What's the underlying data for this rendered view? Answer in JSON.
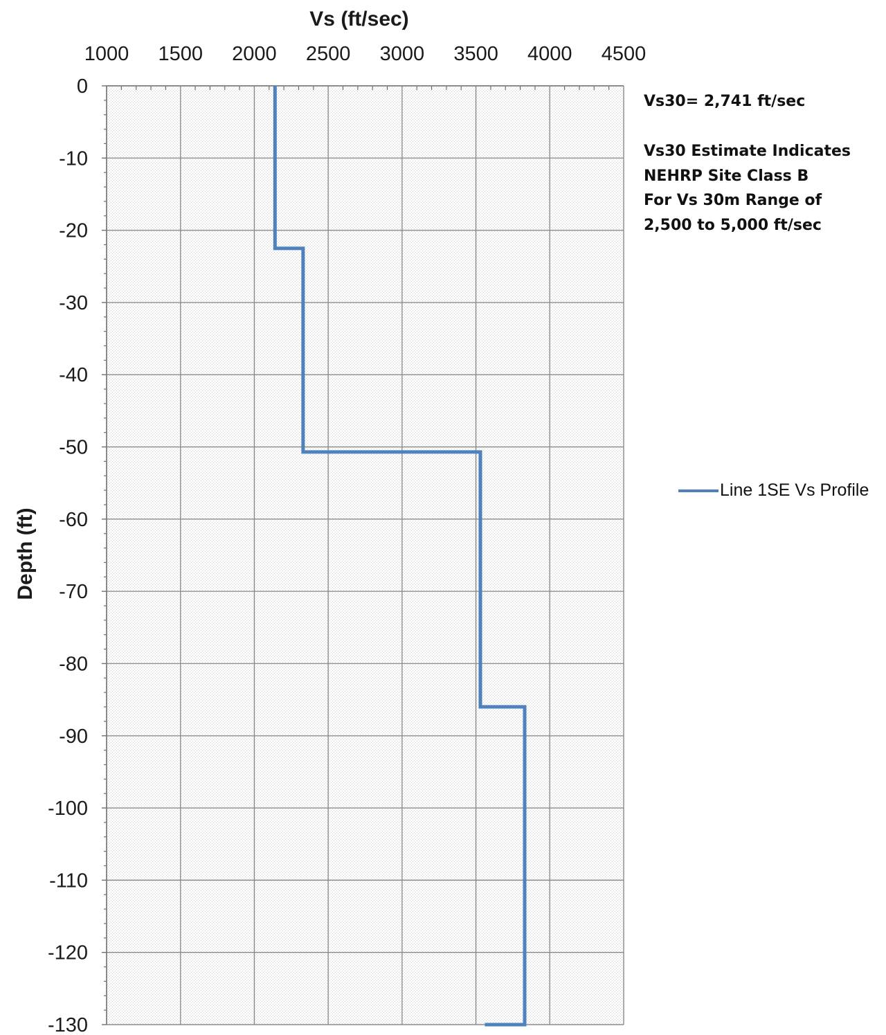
{
  "chart_data": {
    "type": "line",
    "title": "",
    "xlabel": "Vs (ft/sec)",
    "ylabel": "Depth (ft)",
    "x_axis_position": "top",
    "xlim": [
      1000,
      4500
    ],
    "ylim": [
      -130,
      0
    ],
    "x_major_step": 500,
    "y_major_step": 10,
    "grid": true,
    "xticks": [
      "1000",
      "1500",
      "2000",
      "2500",
      "3000",
      "3500",
      "4000",
      "4500"
    ],
    "yticks": [
      "0",
      "-10",
      "-20",
      "-30",
      "-40",
      "-50",
      "-60",
      "-70",
      "-80",
      "-90",
      "-100",
      "-110",
      "-120",
      "-130"
    ],
    "legend_position": "right",
    "colors": {
      "series": "#4f81bd",
      "grid": "#8c8c8c",
      "minor_grid": "#d0d0d0"
    },
    "series": [
      {
        "name": "Line 1SE Vs Profile",
        "x": [
          2140,
          2140,
          2330,
          2330,
          3530,
          3530,
          3830,
          3830,
          3560
        ],
        "y": [
          0,
          -22.5,
          -22.5,
          -50.7,
          -50.7,
          -86,
          -86,
          -130,
          -130
        ]
      }
    ],
    "annotations": [
      "Vs30= 2,741 ft/sec",
      "Vs30 Estimate Indicates",
      "NEHRP Site Class B",
      "For Vs 30m Range of",
      "2,500 to 5,000 ft/sec"
    ]
  }
}
